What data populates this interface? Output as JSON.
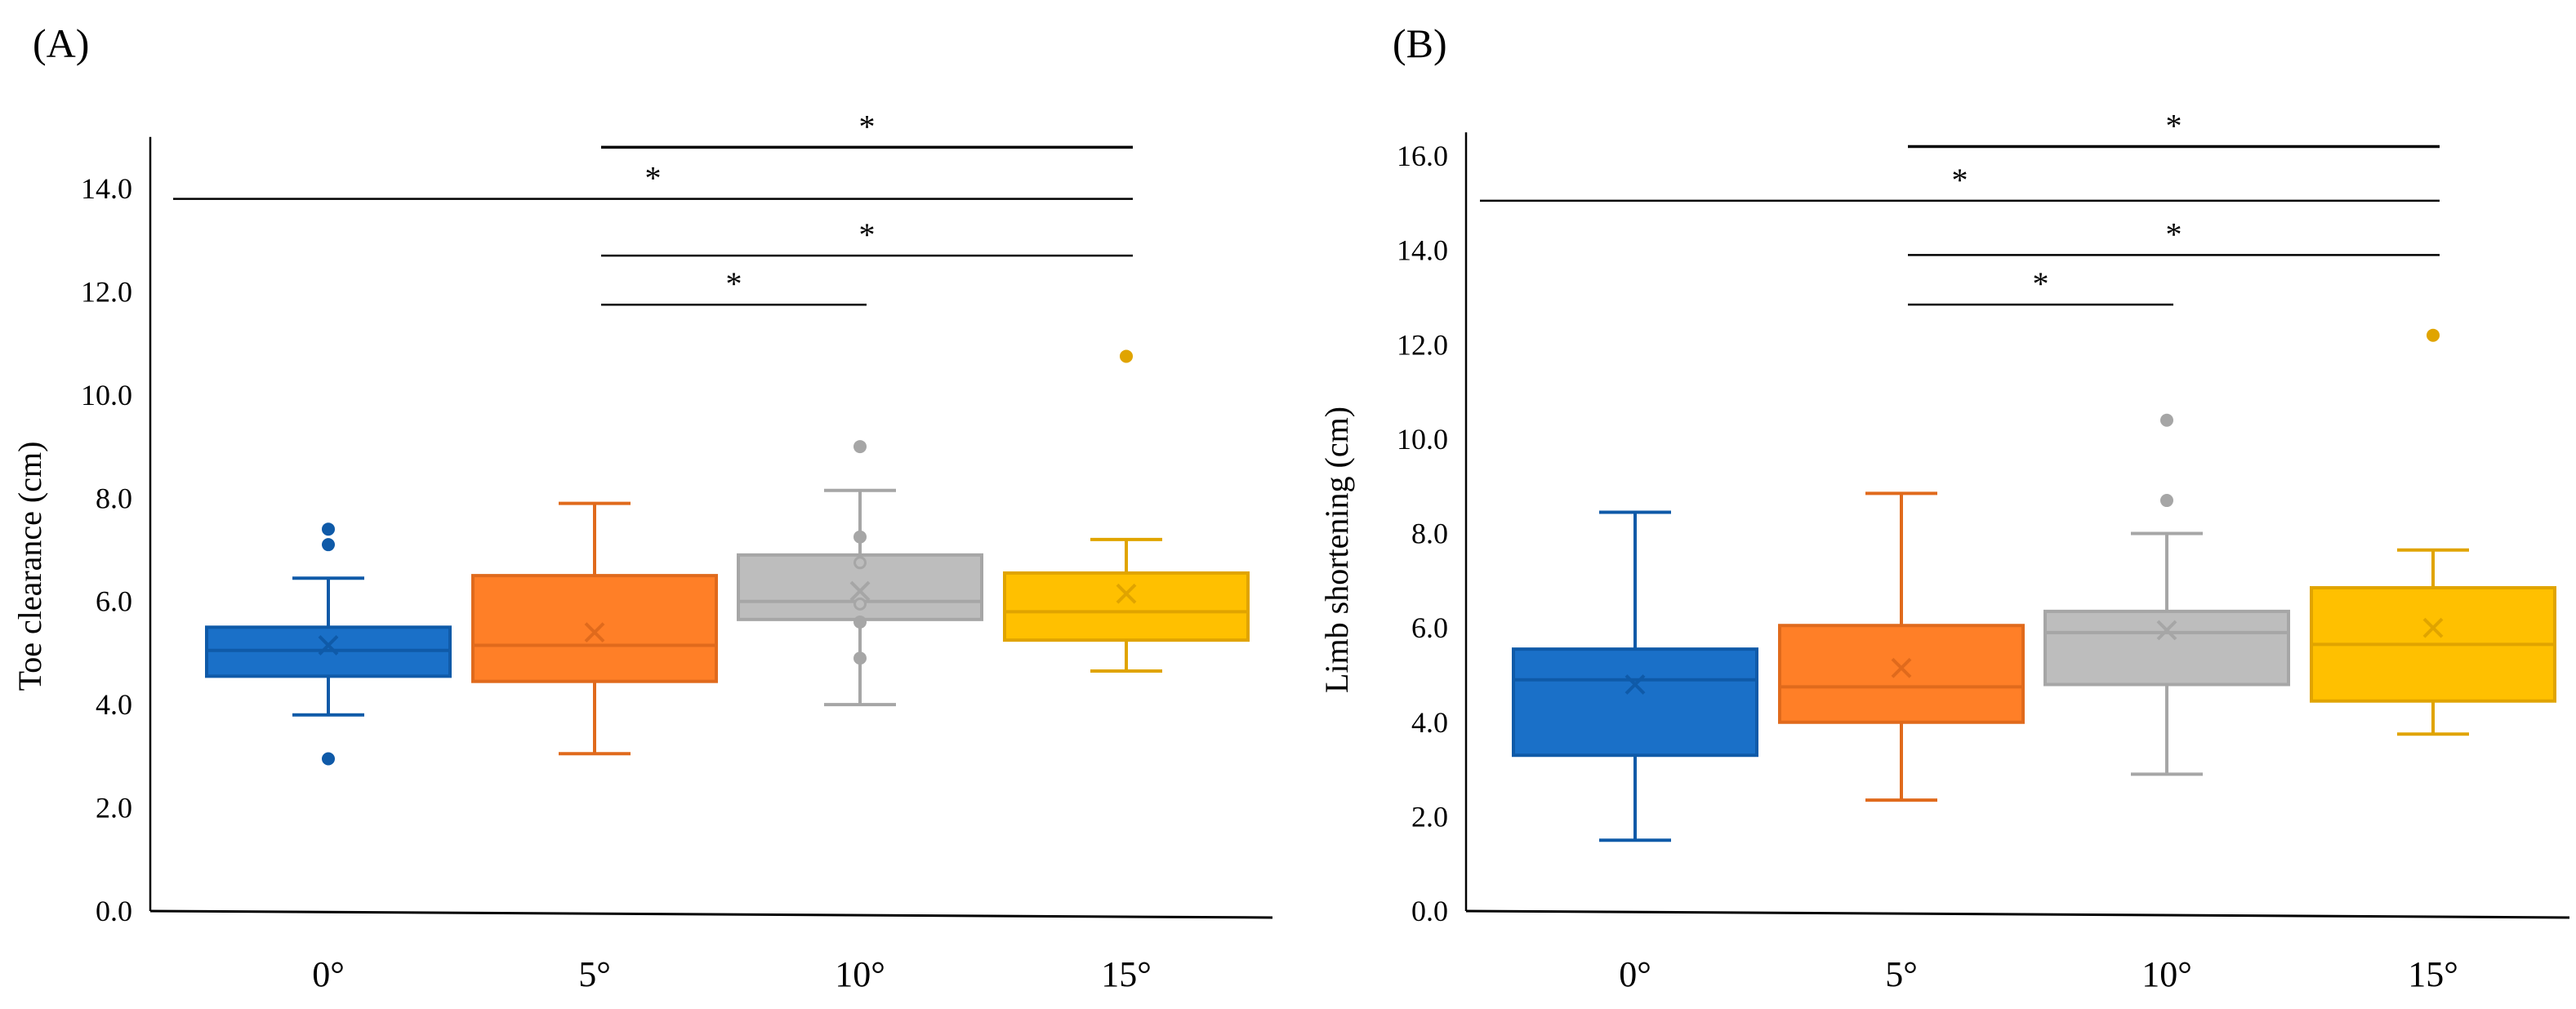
{
  "chart_data": [
    {
      "type": "box",
      "panel_label": "(A)",
      "ylabel": "Toe clearance (cm)",
      "xlabel": "",
      "ylim": [
        0,
        15
      ],
      "yticks": [
        0,
        2,
        4,
        6,
        8,
        10,
        12,
        14
      ],
      "ytick_labels": [
        "0.0",
        "2.0",
        "4.0",
        "6.0",
        "8.0",
        "10.0",
        "12.0",
        "14.0"
      ],
      "categories": [
        "0°",
        "5°",
        "10°",
        "15°"
      ],
      "colors": [
        "#1a70c8",
        "#ff7f27",
        "#bdbdbd",
        "#ffc000"
      ],
      "edge_colors": [
        "#0f5aa8",
        "#e06a1c",
        "#a6a6a6",
        "#e0a400"
      ],
      "boxes": [
        {
          "whisker_low": 3.8,
          "q1": 4.55,
          "median": 5.05,
          "q3": 5.5,
          "whisker_high": 6.45,
          "mean": 5.15,
          "outliers": [
            7.4,
            7.1,
            2.95
          ]
        },
        {
          "whisker_low": 3.05,
          "q1": 4.45,
          "median": 5.15,
          "q3": 6.5,
          "whisker_high": 7.9,
          "mean": 5.4,
          "outliers": []
        },
        {
          "whisker_low": 4.0,
          "q1": 5.65,
          "median": 6.0,
          "q3": 6.9,
          "whisker_high": 8.15,
          "mean": 6.2,
          "outliers": [
            9.0,
            7.25,
            6.75,
            5.95,
            5.6,
            4.9
          ]
        },
        {
          "whisker_low": 4.65,
          "q1": 5.25,
          "median": 5.8,
          "q3": 6.55,
          "whisker_high": 7.2,
          "mean": 6.15,
          "outliers": [
            10.75
          ]
        }
      ],
      "significance": [
        {
          "from": "5°",
          "to": "15°",
          "y": 14.8,
          "label": "*"
        },
        {
          "from": "0°",
          "to": "15°",
          "y": 13.8,
          "label": "*"
        },
        {
          "from": "5°",
          "to": "15°",
          "y": 12.7,
          "label": "*"
        },
        {
          "from": "5°",
          "to": "10°",
          "y": 11.75,
          "label": "*"
        }
      ]
    },
    {
      "type": "box",
      "panel_label": "(B)",
      "ylabel": "Limb shortening (cm)",
      "xlabel": "",
      "ylim": [
        0,
        16.5
      ],
      "yticks": [
        0,
        2,
        4,
        6,
        8,
        10,
        12,
        14,
        16
      ],
      "ytick_labels": [
        "0.0",
        "2.0",
        "4.0",
        "6.0",
        "8.0",
        "10.0",
        "12.0",
        "14.0",
        "16.0"
      ],
      "categories": [
        "0°",
        "5°",
        "10°",
        "15°"
      ],
      "colors": [
        "#1a70c8",
        "#ff7f27",
        "#bdbdbd",
        "#ffc000"
      ],
      "edge_colors": [
        "#0f5aa8",
        "#e06a1c",
        "#a6a6a6",
        "#e0a400"
      ],
      "boxes": [
        {
          "whisker_low": 1.5,
          "q1": 3.3,
          "median": 4.9,
          "q3": 5.55,
          "whisker_high": 8.45,
          "mean": 4.8,
          "outliers": []
        },
        {
          "whisker_low": 2.35,
          "q1": 4.0,
          "median": 4.75,
          "q3": 6.05,
          "whisker_high": 8.85,
          "mean": 5.15,
          "outliers": []
        },
        {
          "whisker_low": 2.9,
          "q1": 4.8,
          "median": 5.9,
          "q3": 6.35,
          "whisker_high": 8.0,
          "mean": 5.95,
          "outliers": [
            10.4,
            8.7
          ]
        },
        {
          "whisker_low": 3.75,
          "q1": 4.45,
          "median": 5.65,
          "q3": 6.85,
          "whisker_high": 7.65,
          "mean": 6.0,
          "outliers": [
            12.2
          ]
        }
      ],
      "significance": [
        {
          "from": "5°",
          "to": "15°",
          "y": 16.2,
          "label": "*"
        },
        {
          "from": "0°",
          "to": "15°",
          "y": 15.05,
          "label": "*"
        },
        {
          "from": "5°",
          "to": "15°",
          "y": 13.9,
          "label": "*"
        },
        {
          "from": "5°",
          "to": "10°",
          "y": 12.85,
          "label": "*"
        }
      ]
    }
  ]
}
